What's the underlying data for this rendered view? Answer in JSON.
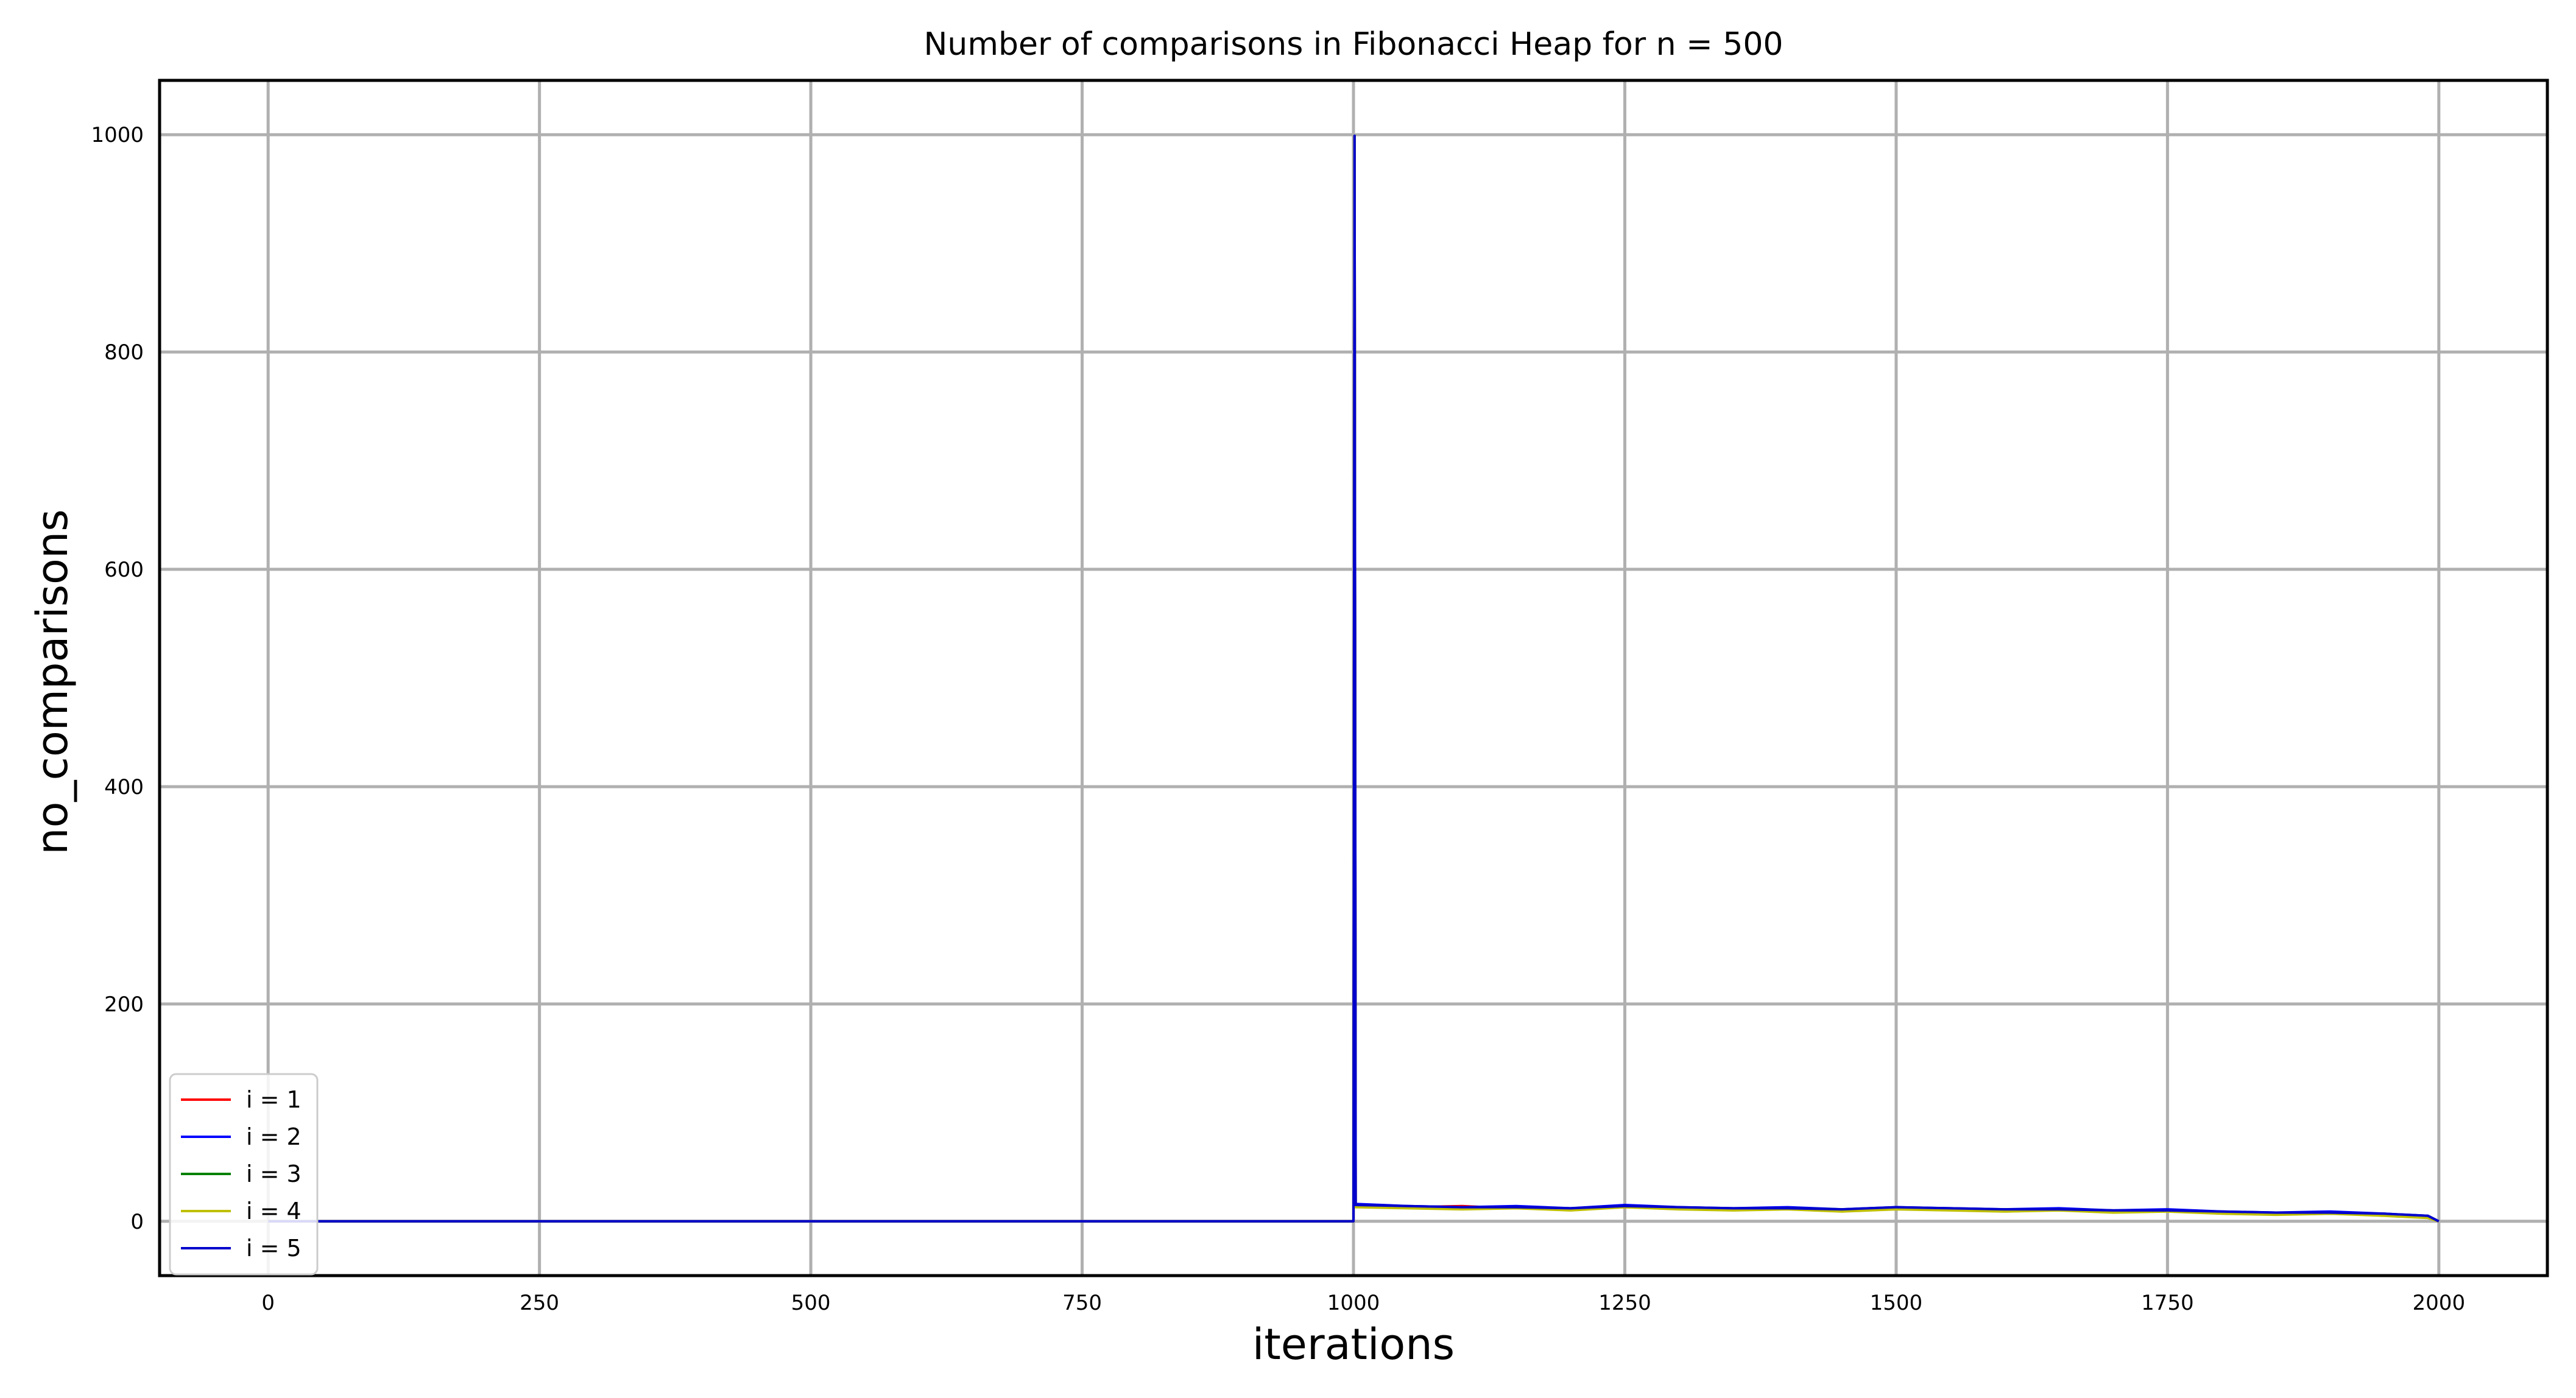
{
  "chart_data": {
    "type": "line",
    "title": "Number of comparisons in Fibonacci Heap for n = 500",
    "xlabel": "iterations",
    "ylabel": "no_comparisons",
    "xlim": [
      -100,
      2100
    ],
    "ylim": [
      -50,
      1050
    ],
    "xticks": [
      0,
      250,
      500,
      750,
      1000,
      1250,
      1500,
      1750,
      2000
    ],
    "yticks": [
      0,
      200,
      400,
      600,
      800,
      1000
    ],
    "grid": true,
    "legend_position": "lower-left",
    "series": [
      {
        "name": "i = 1",
        "color": "#ff0000",
        "x": [
          0,
          1000,
          1001,
          1002,
          1050,
          1100,
          1150,
          1200,
          1250,
          1300,
          1350,
          1400,
          1450,
          1500,
          1550,
          1600,
          1650,
          1700,
          1750,
          1800,
          1850,
          1900,
          1950,
          1990,
          2000
        ],
        "y": [
          0,
          0,
          999,
          15,
          13,
          14,
          12,
          11,
          13,
          12,
          11,
          12,
          10,
          12,
          11,
          10,
          11,
          9,
          10,
          8,
          7,
          8,
          6,
          4,
          0
        ]
      },
      {
        "name": "i = 2",
        "color": "#0000ff",
        "x": [
          0,
          1000,
          1001,
          1002,
          1050,
          1100,
          1150,
          1200,
          1250,
          1300,
          1350,
          1400,
          1450,
          1500,
          1550,
          1600,
          1650,
          1700,
          1750,
          1800,
          1850,
          1900,
          1950,
          1990,
          2000
        ],
        "y": [
          0,
          0,
          999,
          16,
          14,
          13,
          14,
          12,
          15,
          13,
          12,
          13,
          11,
          13,
          12,
          11,
          12,
          10,
          11,
          9,
          8,
          9,
          7,
          5,
          0
        ]
      },
      {
        "name": "i = 3",
        "color": "#008000",
        "x": [
          0,
          1000,
          1001,
          1002,
          1050,
          1100,
          1150,
          1200,
          1250,
          1300,
          1350,
          1400,
          1450,
          1500,
          1550,
          1600,
          1650,
          1700,
          1750,
          1800,
          1850,
          1900,
          1950,
          1990,
          2000
        ],
        "y": [
          0,
          0,
          999,
          14,
          13,
          12,
          13,
          11,
          14,
          12,
          11,
          12,
          11,
          12,
          11,
          10,
          11,
          9,
          10,
          8,
          8,
          7,
          6,
          4,
          0
        ]
      },
      {
        "name": "i = 4",
        "color": "#bfbf00",
        "x": [
          0,
          1000,
          1001,
          1002,
          1050,
          1100,
          1150,
          1200,
          1250,
          1300,
          1350,
          1400,
          1450,
          1500,
          1550,
          1600,
          1650,
          1700,
          1750,
          1800,
          1850,
          1900,
          1950,
          1990,
          2000
        ],
        "y": [
          0,
          0,
          999,
          13,
          12,
          11,
          12,
          10,
          13,
          11,
          10,
          11,
          9,
          11,
          10,
          9,
          10,
          8,
          9,
          7,
          6,
          7,
          5,
          3,
          0
        ]
      },
      {
        "name": "i = 5",
        "color": "#0000cc",
        "x": [
          0,
          1000,
          1001,
          1002,
          1050,
          1100,
          1150,
          1200,
          1250,
          1300,
          1350,
          1400,
          1450,
          1500,
          1550,
          1600,
          1650,
          1700,
          1750,
          1800,
          1850,
          1900,
          1950,
          1990,
          2000
        ],
        "y": [
          0,
          0,
          999,
          15,
          14,
          13,
          13,
          12,
          14,
          13,
          12,
          12,
          11,
          13,
          12,
          11,
          11,
          10,
          10,
          9,
          8,
          8,
          7,
          5,
          0
        ]
      }
    ]
  }
}
